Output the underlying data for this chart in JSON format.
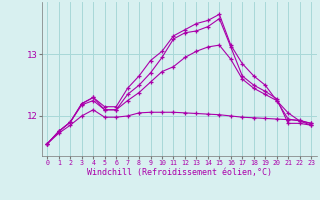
{
  "title": "",
  "xlabel": "Windchill (Refroidissement éolien,°C)",
  "hours": [
    0,
    1,
    2,
    3,
    4,
    5,
    6,
    7,
    8,
    9,
    10,
    11,
    12,
    13,
    14,
    15,
    16,
    17,
    18,
    19,
    20,
    21,
    22,
    23
  ],
  "line_high": [
    11.55,
    11.75,
    11.9,
    12.2,
    12.3,
    12.15,
    12.15,
    12.45,
    12.65,
    12.9,
    13.05,
    13.3,
    13.4,
    13.5,
    13.55,
    13.65,
    13.15,
    12.85,
    12.65,
    12.5,
    12.25,
    11.95,
    11.92,
    11.88
  ],
  "line_mid_high": [
    11.55,
    11.75,
    11.9,
    12.2,
    12.3,
    12.1,
    12.1,
    12.35,
    12.5,
    12.7,
    12.95,
    13.25,
    13.35,
    13.38,
    13.45,
    13.58,
    13.12,
    12.65,
    12.5,
    12.4,
    12.28,
    11.88,
    11.88,
    11.85
  ],
  "line_mid": [
    11.55,
    11.75,
    11.9,
    12.18,
    12.25,
    12.1,
    12.1,
    12.25,
    12.38,
    12.55,
    12.72,
    12.8,
    12.95,
    13.05,
    13.12,
    13.15,
    12.92,
    12.6,
    12.45,
    12.35,
    12.25,
    12.05,
    11.92,
    11.85
  ],
  "line_flat": [
    11.55,
    11.72,
    11.85,
    12.0,
    12.1,
    11.98,
    11.98,
    12.0,
    12.05,
    12.06,
    12.06,
    12.06,
    12.05,
    12.04,
    12.03,
    12.02,
    12.0,
    11.98,
    11.97,
    11.96,
    11.95,
    11.94,
    11.93,
    11.88
  ],
  "line_color": "#aa00aa",
  "bg_color": "#d8f0f0",
  "grid_color": "#a8d8d8",
  "ylabel_ticks": [
    12,
    13
  ],
  "ylim": [
    11.35,
    13.85
  ],
  "xlim": [
    -0.5,
    23.5
  ]
}
